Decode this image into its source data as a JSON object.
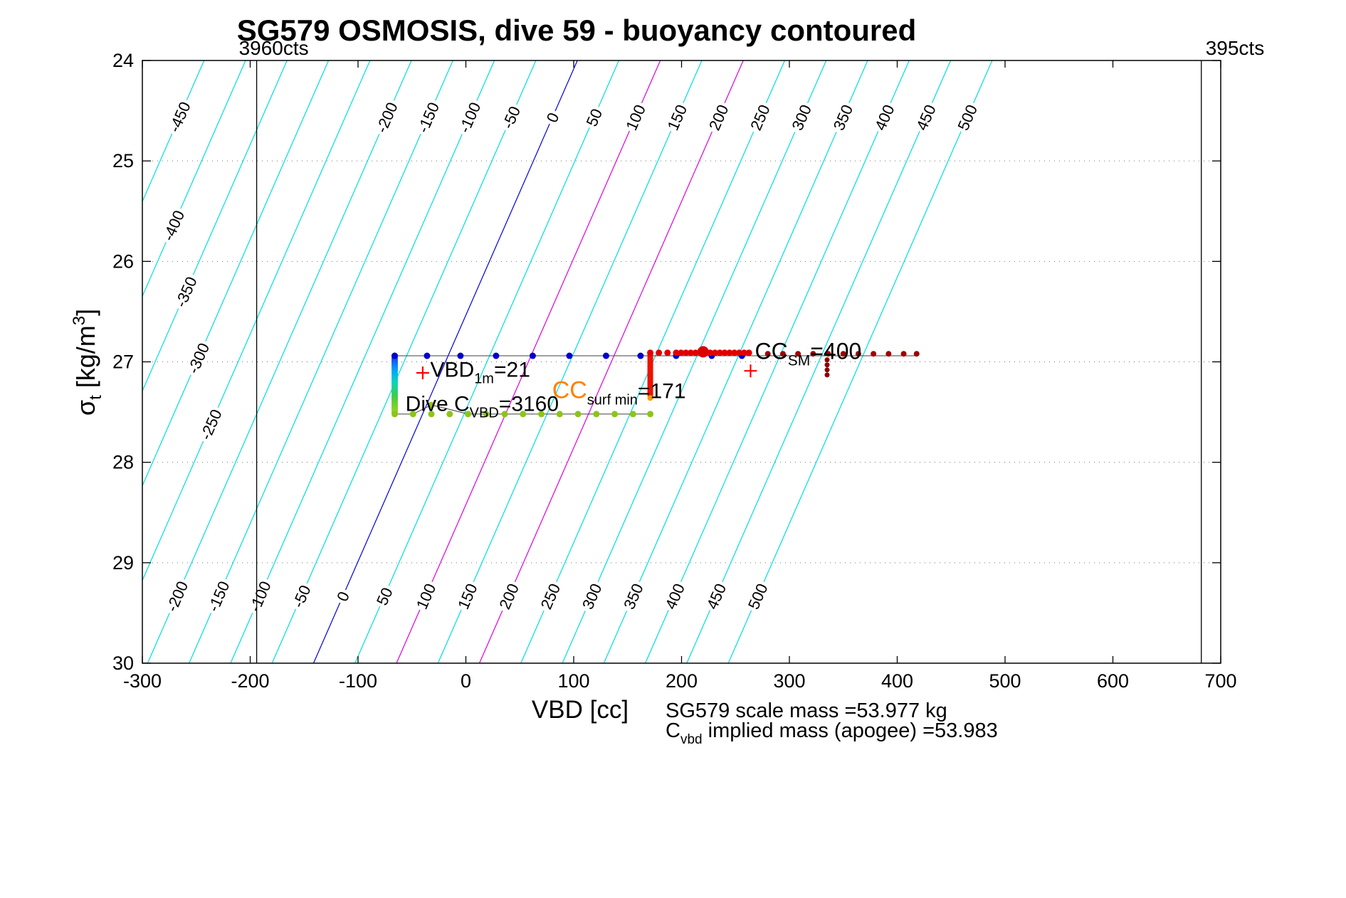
{
  "title": "SG579 OSMOSIS, dive 59 - buoyancy contoured",
  "axis": {
    "xlabel": "VBD [cc]",
    "ylabel_parts": [
      {
        "t": "σ"
      },
      {
        "t": "t",
        "sub": true
      },
      {
        "t": " [kg/m"
      },
      {
        "t": "3",
        "sup": true
      },
      {
        "t": "]"
      }
    ],
    "xlim": [
      -300,
      700
    ],
    "ylim": [
      24,
      30
    ],
    "xticks": [
      -300,
      -200,
      -100,
      0,
      100,
      200,
      300,
      400,
      500,
      600,
      700
    ],
    "yticks": [
      24,
      25,
      26,
      27,
      28,
      29,
      30
    ],
    "grid_y": [
      25,
      26,
      27,
      28,
      29
    ]
  },
  "chart_data": {
    "type": "scatter",
    "title": "SG579 OSMOSIS, dive 59 - buoyancy contoured",
    "xlabel": "VBD [cc]",
    "ylabel": "sigma_t [kg/m^3]",
    "xlim": [
      -300,
      700
    ],
    "ylim": [
      24,
      30
    ],
    "y_axis_reversed": true,
    "contours": {
      "unit": "buoyancy (g), labeled diagonal isolines",
      "values": [
        -450,
        -400,
        -350,
        -300,
        -250,
        -200,
        -150,
        -100,
        -50,
        0,
        50,
        100,
        150,
        200,
        250,
        300,
        350,
        400,
        450,
        500
      ],
      "default_color": "#00DDDD",
      "special_colors": {
        "0": "#0000DD",
        "100": "#DD00DD",
        "200": "#DD00DD"
      },
      "model": {
        "vbd_at_top_zero": 103.4,
        "dvbd_dsigma": -40.78,
        "g_per_cc": 1.3,
        "sigma_ref": 24
      }
    },
    "vbd_limit_lines": [
      {
        "counts_label": "3960cts",
        "vbd": -194,
        "label_side": "left"
      },
      {
        "counts_label": "395cts",
        "vbd": 682,
        "label_side": "right"
      }
    ],
    "series": {
      "descent_gradient_bar": {
        "vbd": -66,
        "sigma_from": 26.94,
        "sigma_to": 27.5,
        "n_points": 28,
        "color_stops": [
          "#2222EE",
          "#0099FF",
          "#00D8C0",
          "#44CC44",
          "#8CD420"
        ]
      },
      "dive_track_blue": {
        "sigma": 26.94,
        "color": "#0000CC",
        "vbd": [
          -66,
          -36,
          -5,
          28,
          62,
          96,
          130,
          162,
          195,
          228,
          256
        ]
      },
      "track_line": {
        "color": "#404040",
        "sigma": 26.94,
        "vbd_from": -66,
        "vbd_to": 418
      },
      "climb_track_green": {
        "sigma": 27.52,
        "color": "#8CC51A",
        "vbd": [
          -66,
          -49,
          -32,
          -15,
          2,
          19,
          36,
          53,
          70,
          87,
          104,
          121,
          138,
          155,
          171
        ],
        "line_bump": [
          [
            -66,
            27.52
          ],
          [
            -49,
            27.52
          ],
          [
            -32,
            27.43
          ],
          [
            -20,
            27.46
          ],
          [
            2,
            27.52
          ],
          [
            171,
            27.52
          ]
        ],
        "bump_dot": [
          -32,
          27.43
        ]
      },
      "surface_red_bar": {
        "vbd": 171,
        "sigma_from": 26.93,
        "sigma_to": 27.33,
        "color": "#EE1100",
        "tip_color": "#FF9900",
        "tip_sigma": 27.36
      },
      "surface_red_dense": {
        "sigma": 26.91,
        "color": "#E00000",
        "vbd_from": 195,
        "vbd_to": 266,
        "step": 4.5
      },
      "surface_red_sparse_left": {
        "sigma": 26.91,
        "color": "#E00000",
        "vbd": [
          171,
          179,
          187
        ]
      },
      "surface_darkred_sparse": {
        "sigma": 26.92,
        "color": "#A00000",
        "vbd": [
          280,
          294,
          308,
          322,
          336,
          350,
          364,
          378,
          392,
          406,
          418
        ]
      },
      "red_blob": {
        "vbd": 220,
        "sigma": 26.9,
        "color": "#DD0000",
        "radius_px": 8
      },
      "apogee_tail_darkred": {
        "vbd": 335,
        "color": "#8B0000",
        "sigma": [
          26.98,
          27.03,
          27.08,
          27.13
        ]
      },
      "plus_markers": {
        "color": "#FF0000",
        "points": [
          [
            -40,
            27.11
          ],
          [
            264,
            27.09
          ]
        ]
      }
    },
    "annotations": [
      {
        "name": "vbd-1m",
        "x": -33,
        "y": 27.15,
        "color": "#FF0000",
        "size": 30,
        "parts": [
          {
            "t": "VBD"
          },
          {
            "t": "1m",
            "sub": true
          },
          {
            "t": "=21"
          }
        ]
      },
      {
        "name": "cc-surf-min",
        "x": 80,
        "y": 27.36,
        "color": "#FF0000",
        "size": 30,
        "parts": [
          {
            "t": "CC",
            "color": "#FF8000",
            "size": 34
          },
          {
            "t": "surf min",
            "sub": true
          },
          {
            "t": "=171"
          }
        ]
      },
      {
        "name": "dive-c-vbd",
        "x": -56,
        "y": 27.49,
        "color": "#000000",
        "size": 30,
        "parts": [
          {
            "t": "Dive C"
          },
          {
            "t": "VBD",
            "sub": true
          },
          {
            "t": "=3160"
          }
        ]
      },
      {
        "name": "cc-sm",
        "x": 268,
        "y": 26.97,
        "color": "#FF0000",
        "size": 32,
        "parts": [
          {
            "t": "CC"
          },
          {
            "t": "SM",
            "sub": true
          },
          {
            "t": "=400"
          }
        ]
      }
    ],
    "footnotes": [
      {
        "name": "scale-mass",
        "parts": [
          {
            "t": "SG579 scale mass =53.977 kg"
          }
        ]
      },
      {
        "name": "implied-mass",
        "parts": [
          {
            "t": "C"
          },
          {
            "t": "vbd",
            "sub": true
          },
          {
            "t": " implied mass (apogee) =53.983"
          }
        ]
      }
    ]
  }
}
